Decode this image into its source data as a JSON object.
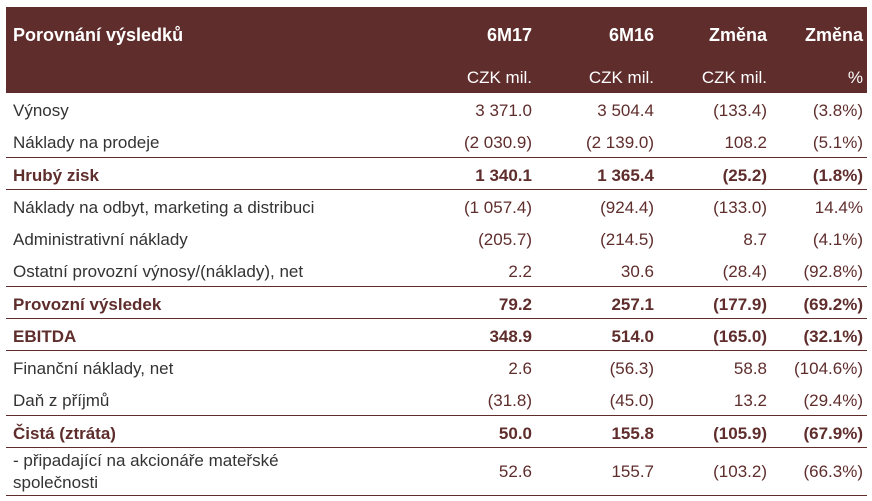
{
  "header": {
    "title": "Porovnání výsledků",
    "col1": "6M17",
    "col2": "6M16",
    "col3": "Změna",
    "col4": "Změna",
    "unit1": "CZK mil.",
    "unit2": "CZK mil.",
    "unit3": "CZK mil.",
    "unit4": "%"
  },
  "rows": [
    {
      "label": "Výnosy",
      "v1": "3 371.0",
      "v2": "3 504.4",
      "v3": "(133.4)",
      "v4": "(3.8%)"
    },
    {
      "label": "Náklady na prodeje",
      "v1": "(2 030.9)",
      "v2": "(2 139.0)",
      "v3": "108.2",
      "v4": "(5.1%)"
    },
    {
      "label": "Hrubý zisk",
      "v1": "1 340.1",
      "v2": "1 365.4",
      "v3": "(25.2)",
      "v4": "(1.8%)"
    },
    {
      "label": "Náklady na odbyt, marketing a distribuci",
      "v1": "(1 057.4)",
      "v2": "(924.4)",
      "v3": "(133.0)",
      "v4": "14.4%"
    },
    {
      "label": "Administrativní náklady",
      "v1": "(205.7)",
      "v2": "(214.5)",
      "v3": "8.7",
      "v4": "(4.1%)"
    },
    {
      "label": "Ostatní provozní výnosy/(náklady), net",
      "v1": "2.2",
      "v2": "30.6",
      "v3": "(28.4)",
      "v4": "(92.8%)"
    },
    {
      "label": "Provozní výsledek",
      "v1": "79.2",
      "v2": "257.1",
      "v3": "(177.9)",
      "v4": "(69.2%)"
    },
    {
      "label": "EBITDA",
      "v1": "348.9",
      "v2": "514.0",
      "v3": "(165.0)",
      "v4": "(32.1%)"
    },
    {
      "label": "Finanční náklady, net",
      "v1": "2.6",
      "v2": "(56.3)",
      "v3": "58.8",
      "v4": "(104.6%)"
    },
    {
      "label": "Daň z příjmů",
      "v1": "(31.8)",
      "v2": "(45.0)",
      "v3": "13.2",
      "v4": "(29.4%)"
    },
    {
      "label": "Čistá (ztráta)",
      "v1": "50.0",
      "v2": "155.8",
      "v3": "(105.9)",
      "v4": "(67.9%)"
    },
    {
      "label": "- připadající na akcionáře mateřské společnosti",
      "v1": "52.6",
      "v2": "155.7",
      "v3": "(103.2)",
      "v4": "(66.3%)"
    }
  ]
}
